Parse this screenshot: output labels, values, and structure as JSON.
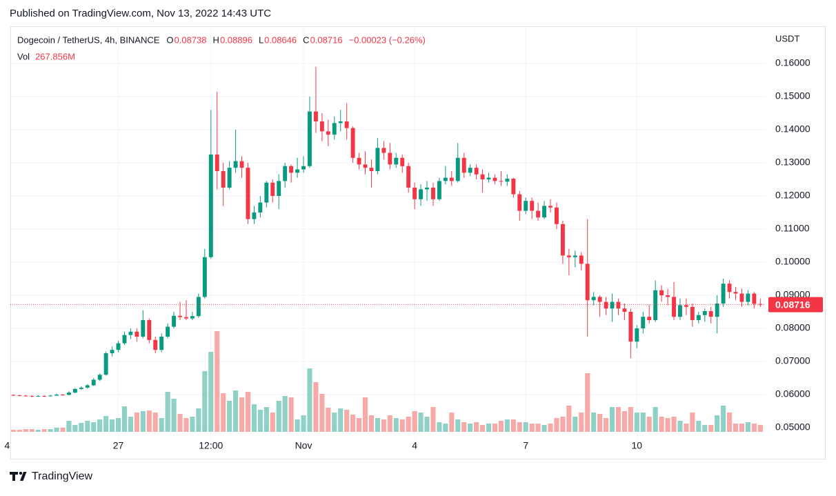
{
  "header": {
    "published": "Published on TradingView.com, Nov 13, 2022 14:43 UTC",
    "brand": "TradingView"
  },
  "chart_data": {
    "type": "candlestick",
    "symbol": "Dogecoin / TetherUS, 4h, BINANCE",
    "ohlc_labels": [
      "O",
      "H",
      "L",
      "C"
    ],
    "change": "−0.00023 (−0.26%)",
    "currency": "USDT",
    "volume_name": "Vol",
    "volume_last_label": "267.856M",
    "up_color": "#089981",
    "down_color": "#f23645",
    "up_volume_color": "#8fd1c6",
    "down_volume_color": "#f7a9a7",
    "grid": true,
    "ylim": [
      0.04667,
      0.17083
    ],
    "yticks": [
      {
        "value": 0.16,
        "label": "0.16000"
      },
      {
        "value": 0.15,
        "label": "0.15000"
      },
      {
        "value": 0.14,
        "label": "0.14000"
      },
      {
        "value": 0.13,
        "label": "0.13000"
      },
      {
        "value": 0.12,
        "label": "0.12000"
      },
      {
        "value": 0.11,
        "label": "0.11000"
      },
      {
        "value": 0.1,
        "label": "0.10000"
      },
      {
        "value": 0.09,
        "label": "0.09000"
      },
      {
        "value": 0.08,
        "label": "0.08000"
      },
      {
        "value": 0.07,
        "label": "0.07000"
      },
      {
        "value": 0.06,
        "label": "0.06000"
      },
      {
        "value": 0.05,
        "label": "0.05000"
      }
    ],
    "xlim": [
      -0.49,
      121.86
    ],
    "xticks": [
      {
        "value": -1,
        "label": "4"
      },
      {
        "value": 17,
        "label": "27"
      },
      {
        "value": 32,
        "label": "12:00"
      },
      {
        "value": 47,
        "label": "Nov"
      },
      {
        "value": 65,
        "label": "4"
      },
      {
        "value": 83,
        "label": "7"
      },
      {
        "value": 101,
        "label": "10"
      }
    ],
    "ohlc": [
      [
        0.0599,
        0.0601,
        0.0596,
        0.0598
      ],
      [
        0.0598,
        0.06,
        0.0595,
        0.0597
      ],
      [
        0.0597,
        0.0599,
        0.0594,
        0.0596
      ],
      [
        0.0596,
        0.0598,
        0.0592,
        0.0594
      ],
      [
        0.0594,
        0.0598,
        0.0593,
        0.0596
      ],
      [
        0.0596,
        0.0598,
        0.0593,
        0.0595
      ],
      [
        0.0595,
        0.0599,
        0.0594,
        0.0597
      ],
      [
        0.0597,
        0.0603,
        0.0596,
        0.06
      ],
      [
        0.06,
        0.0602,
        0.0597,
        0.0599
      ],
      [
        0.0599,
        0.061,
        0.0598,
        0.0606
      ],
      [
        0.0606,
        0.062,
        0.0604,
        0.0617
      ],
      [
        0.0617,
        0.0625,
        0.0614,
        0.0621
      ],
      [
        0.0621,
        0.0632,
        0.0618,
        0.0628
      ],
      [
        0.0628,
        0.065,
        0.0626,
        0.0645
      ],
      [
        0.0645,
        0.0664,
        0.0641,
        0.066
      ],
      [
        0.066,
        0.073,
        0.0657,
        0.0725
      ],
      [
        0.0725,
        0.0745,
        0.0715,
        0.0735
      ],
      [
        0.0735,
        0.0762,
        0.0728,
        0.0755
      ],
      [
        0.0755,
        0.079,
        0.075,
        0.078
      ],
      [
        0.078,
        0.08,
        0.0768,
        0.079
      ],
      [
        0.079,
        0.08,
        0.076,
        0.0775
      ],
      [
        0.0775,
        0.0855,
        0.077,
        0.0825
      ],
      [
        0.0825,
        0.083,
        0.0755,
        0.0765
      ],
      [
        0.0765,
        0.0775,
        0.0725,
        0.0735
      ],
      [
        0.0735,
        0.0785,
        0.0728,
        0.0775
      ],
      [
        0.0775,
        0.0815,
        0.077,
        0.0805
      ],
      [
        0.0805,
        0.085,
        0.08,
        0.0838
      ],
      [
        0.0838,
        0.088,
        0.0825,
        0.0834
      ],
      [
        0.0834,
        0.0885,
        0.0825,
        0.083
      ],
      [
        0.083,
        0.085,
        0.0825,
        0.0837
      ],
      [
        0.0837,
        0.0905,
        0.0832,
        0.0895
      ],
      [
        0.0895,
        0.104,
        0.089,
        0.1015
      ],
      [
        0.1015,
        0.146,
        0.101,
        0.1325
      ],
      [
        0.1325,
        0.1515,
        0.122,
        0.1275
      ],
      [
        0.1275,
        0.13,
        0.117,
        0.1225
      ],
      [
        0.1225,
        0.1305,
        0.122,
        0.1285
      ],
      [
        0.1285,
        0.14,
        0.127,
        0.1305
      ],
      [
        0.1305,
        0.132,
        0.1255,
        0.1285
      ],
      [
        0.1285,
        0.13,
        0.1115,
        0.113
      ],
      [
        0.113,
        0.117,
        0.1115,
        0.115
      ],
      [
        0.115,
        0.12,
        0.1135,
        0.118
      ],
      [
        0.118,
        0.1245,
        0.1165,
        0.124
      ],
      [
        0.124,
        0.125,
        0.118,
        0.12
      ],
      [
        0.12,
        0.1265,
        0.116,
        0.1245
      ],
      [
        0.1245,
        0.13,
        0.1225,
        0.129
      ],
      [
        0.129,
        0.1295,
        0.124,
        0.127
      ],
      [
        0.127,
        0.1315,
        0.1255,
        0.128
      ],
      [
        0.128,
        0.132,
        0.127,
        0.129
      ],
      [
        0.129,
        0.15,
        0.1285,
        0.1455
      ],
      [
        0.1455,
        0.159,
        0.139,
        0.1425
      ],
      [
        0.1425,
        0.145,
        0.1365,
        0.1395
      ],
      [
        0.1395,
        0.143,
        0.135,
        0.1385
      ],
      [
        0.1385,
        0.144,
        0.137,
        0.142
      ],
      [
        0.142,
        0.146,
        0.1395,
        0.1425
      ],
      [
        0.1425,
        0.148,
        0.137,
        0.1405
      ],
      [
        0.1405,
        0.141,
        0.13,
        0.1315
      ],
      [
        0.1315,
        0.133,
        0.128,
        0.1295
      ],
      [
        0.1295,
        0.1335,
        0.1265,
        0.1285
      ],
      [
        0.1285,
        0.131,
        0.1225,
        0.1275
      ],
      [
        0.1275,
        0.1375,
        0.1265,
        0.1345
      ],
      [
        0.1345,
        0.1365,
        0.131,
        0.133
      ],
      [
        0.133,
        0.136,
        0.128,
        0.1295
      ],
      [
        0.1295,
        0.133,
        0.1285,
        0.1315
      ],
      [
        0.1315,
        0.1325,
        0.127,
        0.129
      ],
      [
        0.129,
        0.13,
        0.121,
        0.1225
      ],
      [
        0.1225,
        0.124,
        0.116,
        0.119
      ],
      [
        0.119,
        0.1235,
        0.117,
        0.122
      ],
      [
        0.122,
        0.1245,
        0.1185,
        0.1225
      ],
      [
        0.1225,
        0.124,
        0.117,
        0.119
      ],
      [
        0.119,
        0.1255,
        0.1185,
        0.1245
      ],
      [
        0.1245,
        0.129,
        0.1235,
        0.1255
      ],
      [
        0.1255,
        0.1275,
        0.123,
        0.1245
      ],
      [
        0.1245,
        0.136,
        0.124,
        0.1315
      ],
      [
        0.1315,
        0.133,
        0.1255,
        0.127
      ],
      [
        0.127,
        0.1295,
        0.126,
        0.1285
      ],
      [
        0.1285,
        0.1295,
        0.125,
        0.1265
      ],
      [
        0.1265,
        0.128,
        0.121,
        0.125
      ],
      [
        0.125,
        0.127,
        0.124,
        0.1255
      ],
      [
        0.1255,
        0.1265,
        0.1235,
        0.1245
      ],
      [
        0.1245,
        0.1275,
        0.123,
        0.1243
      ],
      [
        0.1243,
        0.1265,
        0.123,
        0.1252
      ],
      [
        0.1252,
        0.1255,
        0.1195,
        0.1205
      ],
      [
        0.1205,
        0.1215,
        0.1125,
        0.1155
      ],
      [
        0.1155,
        0.1195,
        0.1145,
        0.1185
      ],
      [
        0.1185,
        0.1195,
        0.113,
        0.1155
      ],
      [
        0.1155,
        0.118,
        0.1125,
        0.1135
      ],
      [
        0.1135,
        0.1185,
        0.113,
        0.117
      ],
      [
        0.117,
        0.119,
        0.115,
        0.1165
      ],
      [
        0.1165,
        0.118,
        0.11,
        0.1115
      ],
      [
        0.1115,
        0.1125,
        0.0995,
        0.102
      ],
      [
        0.102,
        0.104,
        0.096,
        0.1015
      ],
      [
        0.1015,
        0.1035,
        0.0985,
        0.102
      ],
      [
        0.102,
        0.103,
        0.0975,
        0.0995
      ],
      [
        0.0995,
        0.113,
        0.0775,
        0.0885
      ],
      [
        0.0885,
        0.091,
        0.087,
        0.0895
      ],
      [
        0.0895,
        0.09,
        0.0835,
        0.088
      ],
      [
        0.088,
        0.0895,
        0.084,
        0.086
      ],
      [
        0.086,
        0.0905,
        0.082,
        0.088
      ],
      [
        0.088,
        0.089,
        0.084,
        0.086
      ],
      [
        0.086,
        0.0875,
        0.0825,
        0.085
      ],
      [
        0.085,
        0.086,
        0.071,
        0.076
      ],
      [
        0.076,
        0.081,
        0.074,
        0.08
      ],
      [
        0.08,
        0.085,
        0.0785,
        0.0835
      ],
      [
        0.0835,
        0.087,
        0.0815,
        0.0825
      ],
      [
        0.0825,
        0.0945,
        0.082,
        0.0915
      ],
      [
        0.0915,
        0.093,
        0.088,
        0.09
      ],
      [
        0.09,
        0.092,
        0.087,
        0.0895
      ],
      [
        0.0895,
        0.094,
        0.0825,
        0.0835
      ],
      [
        0.0835,
        0.089,
        0.0825,
        0.087
      ],
      [
        0.087,
        0.089,
        0.084,
        0.0865
      ],
      [
        0.0865,
        0.0875,
        0.0805,
        0.0825
      ],
      [
        0.0825,
        0.085,
        0.0815,
        0.084
      ],
      [
        0.084,
        0.086,
        0.082,
        0.0852
      ],
      [
        0.0852,
        0.0865,
        0.0815,
        0.0835
      ],
      [
        0.0835,
        0.09,
        0.0785,
        0.0875
      ],
      [
        0.0875,
        0.095,
        0.0865,
        0.0935
      ],
      [
        0.0935,
        0.0945,
        0.089,
        0.091
      ],
      [
        0.091,
        0.0925,
        0.0885,
        0.0905
      ],
      [
        0.0905,
        0.092,
        0.0865,
        0.088
      ],
      [
        0.088,
        0.0915,
        0.087,
        0.0905
      ],
      [
        0.0905,
        0.091,
        0.086,
        0.0874
      ],
      [
        0.08738,
        0.08896,
        0.08646,
        0.08716
      ]
    ],
    "volume": [
      81,
      81,
      108,
      108,
      81,
      108,
      108,
      162,
      162,
      432,
      270,
      351,
      432,
      378,
      486,
      621,
      486,
      540,
      999,
      594,
      756,
      810,
      837,
      756,
      540,
      1566,
      1296,
      702,
      540,
      594,
      918,
      2376,
      3132,
      3942,
      1512,
      1215,
      1620,
      1350,
      1566,
      1080,
      864,
      972,
      756,
      1215,
      1404,
      1350,
      486,
      648,
      2484,
      1944,
      1485,
      945,
      756,
      918,
      864,
      675,
      540,
      1350,
      648,
      540,
      486,
      648,
      540,
      486,
      594,
      810,
      756,
      594,
      972,
      378,
      324,
      756,
      486,
      378,
      324,
      378,
      270,
      324,
      324,
      432,
      486,
      486,
      378,
      378,
      324,
      324,
      270,
      324,
      540,
      594,
      1026,
      594,
      756,
      2295,
      756,
      702,
      540,
      972,
      972,
      810,
      972,
      756,
      756,
      594,
      972,
      594,
      540,
      594,
      432,
      324,
      756,
      432,
      270,
      270,
      648,
      1026,
      756,
      324,
      324,
      378,
      324,
      267.856
    ]
  }
}
